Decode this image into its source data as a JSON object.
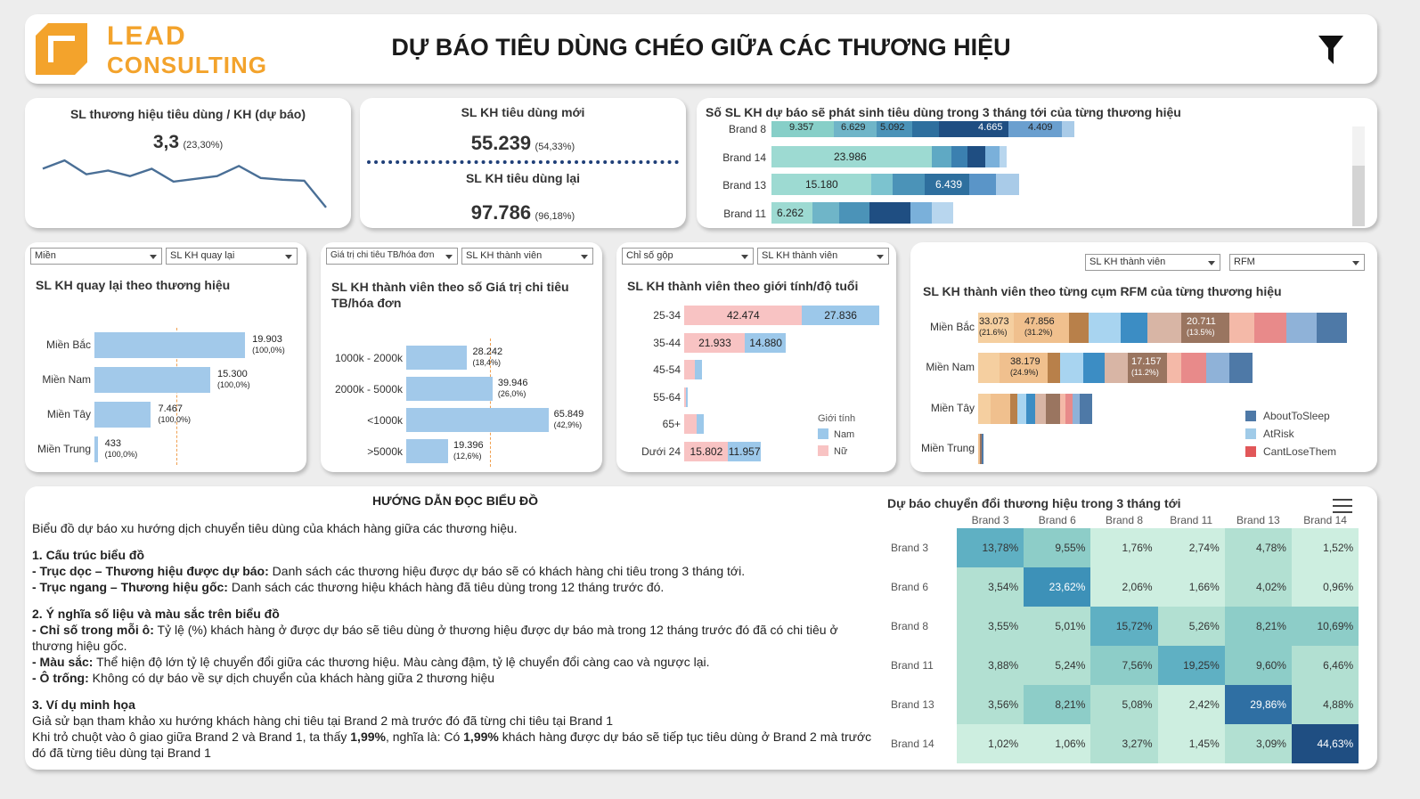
{
  "header": {
    "logo_line1": "LEAD",
    "logo_line2": "CONSULTING",
    "title": "DỰ BÁO TIÊU DÙNG CHÉO GIỮA CÁC THƯƠNG HIỆU"
  },
  "kpi1": {
    "title": "SL thương hiệu tiêu dùng / KH (dự báo)",
    "value": "3,3",
    "pct": "(23,30%)",
    "sparkline": [
      5.2,
      6.1,
      4.6,
      5.0,
      4.4,
      5.2,
      3.8,
      4.1,
      4.4,
      5.5,
      4.2,
      4.0,
      3.9,
      1.0
    ]
  },
  "kpi2": {
    "title1": "SL KH tiêu dùng mới",
    "value1": "55.239",
    "pct1": "(54,33%)",
    "title2": "SL KH tiêu dùng lại",
    "value2": "97.786",
    "pct2": "(96,18%)"
  },
  "forecast": {
    "title": "Số SL KH dự báo sẽ phát sinh tiêu dùng trong 3 tháng tới của từng thương hiệu",
    "rows": [
      {
        "label": "Brand 8",
        "values": [
          "9.357",
          "6.629",
          "5.092",
          "4.665",
          "4.409"
        ]
      },
      {
        "label": "Brand 14",
        "values": [
          "23.986"
        ]
      },
      {
        "label": "Brand 13",
        "values": [
          "15.180",
          "6.439"
        ]
      },
      {
        "label": "Brand 11",
        "values": [
          "6.262"
        ]
      }
    ]
  },
  "returning": {
    "filter1": "Miền",
    "filter2": "SL KH quay lại",
    "title": "SL KH quay lại theo thương hiệu",
    "rows": [
      {
        "label": "Miền Bắc",
        "value": "19.903",
        "pct": "(100,0%)",
        "num": 19903
      },
      {
        "label": "Miền Nam",
        "value": "15.300",
        "pct": "(100,0%)",
        "num": 15300
      },
      {
        "label": "Miền Tây",
        "value": "7.467",
        "pct": "(100,0%)",
        "num": 7467
      },
      {
        "label": "Miền Trung",
        "value": "433",
        "pct": "(100,0%)",
        "num": 433
      }
    ]
  },
  "spend": {
    "filter1": "Giá trị chi tiêu TB/hóa đơn",
    "filter2": "SL KH thành viên",
    "title_line1": "SL KH thành viên theo số Giá trị chi tiêu",
    "title_line2": "TB/hóa đơn",
    "rows": [
      {
        "label": "1000k - 2000k",
        "value": "28.242",
        "pct": "(18,4%)",
        "num": 28242
      },
      {
        "label": "2000k - 5000k",
        "value": "39.946",
        "pct": "(26,0%)",
        "num": 39946
      },
      {
        "label": "<1000k",
        "value": "65.849",
        "pct": "(42,9%)",
        "num": 65849
      },
      {
        "label": ">5000k",
        "value": "19.396",
        "pct": "(12,6%)",
        "num": 19396
      }
    ]
  },
  "gender": {
    "filter1": "Chỉ số gộp",
    "filter2": "SL KH thành viên",
    "title": "SL KH thành viên theo giới tính/độ tuổi",
    "legend_title": "Giới tính",
    "legend_nam": "Nam",
    "legend_nu": "Nữ",
    "rows": [
      {
        "label": "25-34",
        "female": "42.474",
        "male": "27.836",
        "f": 42474,
        "m": 27836
      },
      {
        "label": "35-44",
        "female": "21.933",
        "male": "14.880",
        "f": 21933,
        "m": 14880
      },
      {
        "label": "45-54",
        "female": "",
        "male": "",
        "f": 4000,
        "m": 2500
      },
      {
        "label": "55-64",
        "female": "",
        "male": "",
        "f": 800,
        "m": 400
      },
      {
        "label": "65+",
        "female": "",
        "male": "",
        "f": 4500,
        "m": 2500
      },
      {
        "label": "Dưới 24",
        "female": "15.802",
        "male": "11.957",
        "f": 15802,
        "m": 11957
      }
    ]
  },
  "rfm": {
    "filter1": "SL KH thành viên",
    "filter2": "RFM",
    "title": "SL KH thành viên  theo từng cụm RFM của từng thương hiệu",
    "rows": [
      {
        "label": "Miền Bắc",
        "annotations": [
          {
            "value": "33.073",
            "pct": "(21.6%)"
          },
          {
            "value": "47.856",
            "pct": "(31.2%)"
          },
          {
            "value": "20.711",
            "pct": "(13.5%)"
          }
        ]
      },
      {
        "label": "Miền Nam",
        "annotations": [
          {
            "value": "38.179",
            "pct": "(24.9%)"
          },
          {
            "value": "17.157",
            "pct": "(11.2%)"
          }
        ]
      },
      {
        "label": "Miền Tây",
        "annotations": []
      },
      {
        "label": "Miền Trung",
        "annotations": []
      }
    ],
    "legend": [
      {
        "name": "AboutToSleep",
        "color": "#4e79a7"
      },
      {
        "name": "AtRisk",
        "color": "#a0cbe8"
      },
      {
        "name": "CantLoseThem",
        "color": "#e15759"
      }
    ]
  },
  "guide": {
    "title": "HƯỚNG DẪN ĐỌC BIỂU ĐỒ",
    "intro": "Biểu đồ dự báo xu hướng dịch chuyển tiêu dùng của khách hàng giữa các thương hiệu.",
    "s1_title": "1. Cấu trúc biểu đồ",
    "s1_a_bold": "- Trục dọc – Thương hiệu được dự báo:",
    "s1_a_text": " Danh sách các thương hiệu được dự báo sẽ có khách hàng chi tiêu trong 3 tháng tới.",
    "s1_b_bold": "- Trục ngang – Thương hiệu gốc:",
    "s1_b_text": " Danh sách các thương hiệu khách hàng đã tiêu dùng trong 12 tháng trước đó.",
    "s2_title": "2. Ý nghĩa số liệu và màu sắc trên biểu đồ",
    "s2_a_bold": "- Chỉ số trong mỗi ô:",
    "s2_a_text": " Tỷ lệ (%) khách hàng ở được dự báo sẽ tiêu dùng ở thương hiệu được dự báo mà trong 12 tháng trước đó đã có chi tiêu ở thương hiệu gốc.",
    "s2_b_bold": "- Màu sắc:",
    "s2_b_text": " Thể hiện độ lớn tỷ lệ chuyển đổi giữa các thương hiệu. Màu càng đậm, tỷ lệ chuyển đổi càng cao và ngược lại.",
    "s2_c_bold": "- Ô trống:",
    "s2_c_text": " Không có dự báo về sự dịch chuyển của khách hàng giữa 2 thương hiệu",
    "s3_title": "3. Ví dụ minh họa",
    "s3_line1": "Giả sử bạn tham khảo xu hướng khách hàng chi tiêu tại Brand 2 mà trước đó đã từng chi tiêu tại Brand 1",
    "s3_line2_a": "Khi trỏ chuột vào ô giao giữa Brand 2 và Brand 1, ta thấy ",
    "s3_line2_b": "1,99%",
    "s3_line2_c": ", nghĩa là: Có ",
    "s3_line2_d": "1,99%",
    "s3_line2_e": " khách hàng được dự báo sẽ tiếp tục tiêu dùng ở Brand 2 mà trước đó đã từng tiêu dùng tại Brand 1"
  },
  "heatmap": {
    "title": "Dự báo chuyển đổi thương hiệu trong 3 tháng tới",
    "columns": [
      "Brand 3",
      "Brand 6",
      "Brand 8",
      "Brand 11",
      "Brand 13",
      "Brand 14"
    ],
    "rows": [
      {
        "label": "Brand 3",
        "cells": [
          "13,78%",
          "9,55%",
          "1,76%",
          "2,74%",
          "4,78%",
          "1,52%"
        ],
        "nums": [
          13.78,
          9.55,
          1.76,
          2.74,
          4.78,
          1.52
        ]
      },
      {
        "label": "Brand 6",
        "cells": [
          "3,54%",
          "23,62%",
          "2,06%",
          "1,66%",
          "4,02%",
          "0,96%"
        ],
        "nums": [
          3.54,
          23.62,
          2.06,
          1.66,
          4.02,
          0.96
        ]
      },
      {
        "label": "Brand 8",
        "cells": [
          "3,55%",
          "5,01%",
          "15,72%",
          "5,26%",
          "8,21%",
          "10,69%"
        ],
        "nums": [
          3.55,
          5.01,
          15.72,
          5.26,
          8.21,
          10.69
        ]
      },
      {
        "label": "Brand 11",
        "cells": [
          "3,88%",
          "5,24%",
          "7,56%",
          "19,25%",
          "9,60%",
          "6,46%"
        ],
        "nums": [
          3.88,
          5.24,
          7.56,
          19.25,
          9.6,
          6.46
        ]
      },
      {
        "label": "Brand 13",
        "cells": [
          "3,56%",
          "8,21%",
          "5,08%",
          "2,42%",
          "29,86%",
          "4,88%"
        ],
        "nums": [
          3.56,
          8.21,
          5.08,
          2.42,
          29.86,
          4.88
        ]
      },
      {
        "label": "Brand 14",
        "cells": [
          "1,02%",
          "1,06%",
          "3,27%",
          "1,45%",
          "3,09%",
          "44,63%"
        ],
        "nums": [
          1.02,
          1.06,
          3.27,
          1.45,
          3.09,
          44.63
        ]
      }
    ]
  }
}
